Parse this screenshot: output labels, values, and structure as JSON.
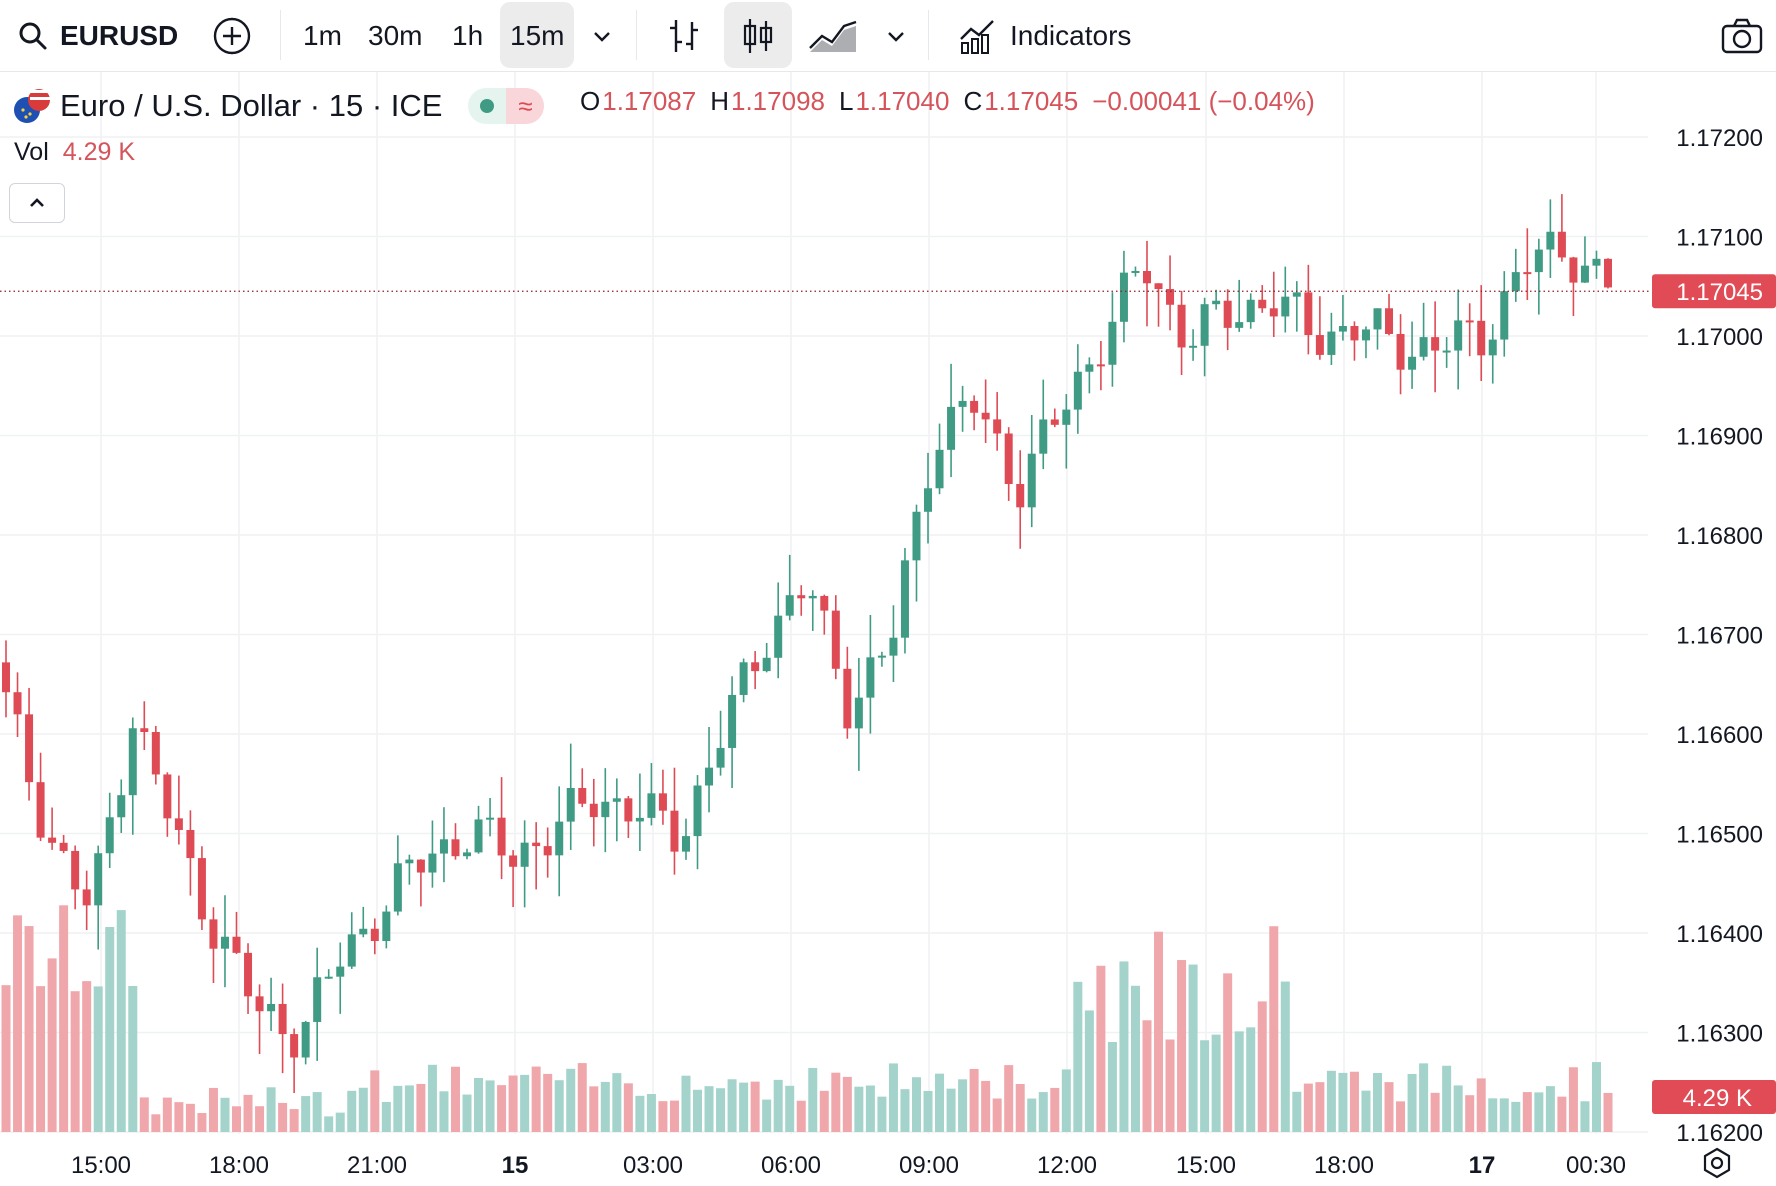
{
  "toolbar": {
    "symbol": "EURUSD",
    "intervals": [
      "1m",
      "30m",
      "1h",
      "15m"
    ],
    "active_interval": "15m",
    "indicators_label": "Indicators"
  },
  "legend": {
    "title": "Euro / U.S. Dollar · 15 · ICE",
    "o_label": "O",
    "o_value": "1.17087",
    "h_label": "H",
    "h_value": "1.17098",
    "l_label": "L",
    "l_value": "1.17040",
    "c_label": "C",
    "c_value": "1.17045",
    "change": "−0.00041 (−0.04%)",
    "vol_label": "Vol",
    "vol_value": "4.29 K"
  },
  "colors": {
    "up": "#3f9b84",
    "down": "#de4b55",
    "up_vol": "#a3d3cb",
    "down_vol": "#f0a7ab",
    "grid": "#f0f1f3",
    "last_price_bg": "#e04b55"
  },
  "chart_data": {
    "type": "candlestick",
    "symbol": "EURUSD",
    "interval": "15",
    "ylim": [
      1.162,
      1.172
    ],
    "y_ticks": [
      "1.17200",
      "1.17100",
      "1.17000",
      "1.16900",
      "1.16800",
      "1.16700",
      "1.16600",
      "1.16500",
      "1.16400",
      "1.16300",
      "1.16200"
    ],
    "x_ticks": [
      {
        "label": "15:00",
        "bold": false
      },
      {
        "label": "18:00",
        "bold": false
      },
      {
        "label": "21:00",
        "bold": false
      },
      {
        "label": "15",
        "bold": true
      },
      {
        "label": "03:00",
        "bold": false
      },
      {
        "label": "06:00",
        "bold": false
      },
      {
        "label": "09:00",
        "bold": false
      },
      {
        "label": "12:00",
        "bold": false
      },
      {
        "label": "15:00",
        "bold": false
      },
      {
        "label": "18:00",
        "bold": false
      },
      {
        "label": "17",
        "bold": true
      },
      {
        "label": "00:30",
        "bold": false
      }
    ],
    "last_price": "1.17045",
    "last_volume": "4.29 K",
    "close_series": [
      1.1663,
      1.165,
      1.1642,
      1.1662,
      1.165,
      1.164,
      1.1632,
      1.163,
      1.1638,
      1.1643,
      1.1648,
      1.165,
      1.1648,
      1.165,
      1.1654,
      1.1652,
      1.165,
      1.166,
      1.167,
      1.1675,
      1.1663,
      1.1669,
      1.169,
      1.1693,
      1.1685,
      1.1692,
      1.17,
      1.1707,
      1.17,
      1.1702,
      1.1704,
      1.17,
      1.1701,
      1.1699,
      1.1699,
      1.17,
      1.1707,
      1.1709,
      1.1705
    ]
  }
}
